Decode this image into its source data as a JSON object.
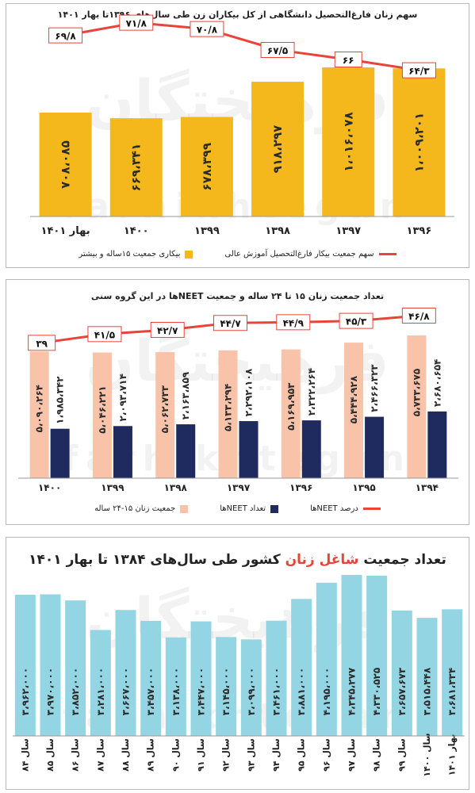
{
  "watermark": {
    "fa": "فرهیختگان",
    "en": "farhikhtegan"
  },
  "chart_data": [
    {
      "type": "bar",
      "title": "سهم زنان فارغ‌التحصیل دانشگاهی از کل بیکاران زن طی سال‌های ۱۳۹۶تا بهار ۱۴۰۱",
      "categories": [
        "۱۳۹۶",
        "۱۳۹۷",
        "۱۳۹۸",
        "۱۳۹۹",
        "۱۴۰۰",
        "بهار ۱۴۰۱"
      ],
      "series": [
        {
          "name": "بیکاری جمعیت ۱۵ساله و بیشتر",
          "kind": "bar",
          "color": "#f4b81c",
          "values": [
            1009201,
            1016078,
            918297,
            678399,
            669341,
            708085
          ],
          "labels": [
            "۱،۰۰۹،۲۰۱",
            "۱،۰۱۶،۰۷۸",
            "۹۱۸،۲۹۷",
            "۶۷۸،۳۹۹",
            "۶۶۹،۳۴۱",
            "۷۰۸،۰۸۵"
          ]
        },
        {
          "name": "سهم جمعیت بیکار فارغ‌التحصیل آموزش عالی",
          "kind": "line",
          "color": "#e8443a",
          "values": [
            64.3,
            66,
            67.5,
            70.8,
            71.8,
            69.8
          ],
          "labels": [
            "۶۴/۳",
            "۶۶",
            "۶۷/۵",
            "۷۰/۸",
            "۷۱/۸",
            "۶۹/۸"
          ]
        }
      ]
    },
    {
      "type": "bar",
      "title": "تعداد جمعیت زنان ۱۵ تا ۲۴ ساله و جمعیت NEETها در این گروه سنی",
      "categories": [
        "۱۳۹۴",
        "۱۳۹۵",
        "۱۳۹۶",
        "۱۳۹۷",
        "۱۳۹۸",
        "۱۳۹۹",
        "۱۴۰۰"
      ],
      "series": [
        {
          "name": "جمعیت زنان ۱۵-۲۴ ساله",
          "kind": "bar",
          "color": "#f8c3a8",
          "values": [
            5733675,
            5444928,
            5169953,
            5133294,
            5062733,
            5046221,
            5090264
          ],
          "labels": [
            "۵،۷۳۳،۶۷۵",
            "۵،۴۴۴،۹۲۸",
            "۵،۱۶۹،۹۵۳",
            "۵،۱۳۳،۲۹۴",
            "۵،۰۶۲،۷۳۳",
            "۵،۰۴۶،۲۲۱",
            "۵،۰۹۰،۲۶۴"
          ]
        },
        {
          "name": "تعداد NEETها",
          "kind": "bar",
          "color": "#1f2b5e",
          "values": [
            2680654,
            2466323,
            2322264,
            2292108,
            2163859,
            2093714,
            1985342
          ],
          "labels": [
            "۲،۶۸۰،۶۵۴",
            "۲،۴۶۶،۳۲۳",
            "۲،۳۲۲،۲۶۴",
            "۲،۲۹۲،۱۰۸",
            "۲،۱۶۳،۸۵۹",
            "۲،۰۹۳،۷۱۴",
            "۱،۹۸۵،۳۴۲"
          ]
        },
        {
          "name": "درصد NEETها",
          "kind": "line",
          "color": "#e8443a",
          "values": [
            46.8,
            45.3,
            44.9,
            44.7,
            42.7,
            41.5,
            39
          ],
          "labels": [
            "۴۶/۸",
            "۴۵/۳",
            "۴۴/۹",
            "۴۴/۷",
            "۴۲/۷",
            "۴۱/۵",
            "۳۹"
          ]
        }
      ]
    },
    {
      "type": "bar",
      "title_before": "تعداد جمعیت ",
      "title_highlight": "شاغل زنان",
      "title_after": " کشور طی سال‌های ۱۳۸۴ تا بهار ۱۴۰۱",
      "categories": [
        "سال ۸۴",
        "سال ۸۵",
        "سال ۸۶",
        "سال ۸۷",
        "سال ۸۸",
        "سال ۸۹",
        "سال ۹۰",
        "سال ۹۱",
        "سال ۹۲",
        "سال ۹۳",
        "سال ۹۴",
        "سال ۹۵",
        "سال ۹۶",
        "سال ۹۷",
        "سال ۹۸",
        "سال ۹۹",
        "سال ۱۴۰۰",
        "بهار ۱۴۰۱"
      ],
      "series": [
        {
          "name": "",
          "kind": "bar",
          "color": "#93d5e3",
          "values": [
            3962000,
            3970000,
            3852000,
            3281000,
            3667000,
            3457000,
            3138000,
            3447000,
            3145000,
            3099000,
            3461000,
            3881000,
            4195000,
            4345277,
            4330525,
            3657673,
            3515448,
            3681334
          ],
          "labels": [
            "۳،۹۶۲،۰۰۰",
            "۳،۹۷۰،۰۰۰",
            "۳،۸۵۲،۰۰۰",
            "۳،۲۸۱،۰۰۰",
            "۳،۶۶۷،۰۰۰",
            "۳،۴۵۷،۰۰۰",
            "۳،۱۳۸،۰۰۰",
            "۳،۴۴۷،۰۰۰",
            "۳،۱۴۵،۰۰۰",
            "۳،۰۹۹،۰۰۰",
            "۳،۴۶۱،۰۰۰",
            "۳،۸۸۱،۰۰۰",
            "۴،۱۹۵،۰۰۰",
            "۴،۳۴۵،۲۷۷",
            "۴،۳۳۰،۵۲۵",
            "۳،۶۵۷،۶۷۳",
            "۳،۵۱۵،۴۴۸",
            "۳،۶۸۱،۳۳۴"
          ]
        }
      ]
    }
  ]
}
